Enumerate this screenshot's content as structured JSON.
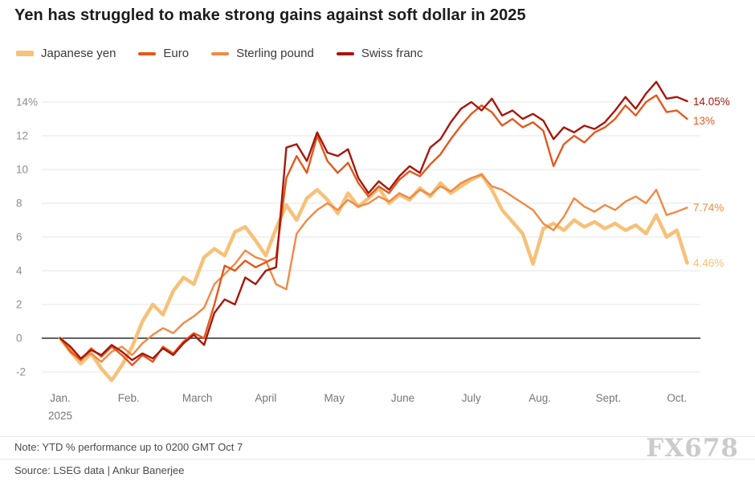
{
  "title": "Yen has struggled to make strong gains against soft dollar in 2025",
  "chart_data": {
    "type": "line",
    "title": "Yen has struggled to make strong gains against soft dollar in 2025",
    "xlabel": "",
    "ylabel": "YTD % performance",
    "grid": "horizontal",
    "legend_position": "top-left",
    "x_axis": {
      "start": 0,
      "step": 0.15,
      "unit": "month (0 = Jan 2025)",
      "ticks": [
        {
          "label": "Jan.",
          "sub": "2025",
          "month": 0
        },
        {
          "label": "Feb.",
          "month": 1
        },
        {
          "label": "March",
          "month": 2
        },
        {
          "label": "April",
          "month": 3
        },
        {
          "label": "May",
          "month": 4
        },
        {
          "label": "June",
          "month": 5
        },
        {
          "label": "July",
          "month": 6
        },
        {
          "label": "Aug.",
          "month": 7
        },
        {
          "label": "Sept.",
          "month": 8
        },
        {
          "label": "Oct.",
          "month": 9
        }
      ]
    },
    "y_axis": {
      "range": [
        -3,
        15.5
      ],
      "ticks": [
        {
          "label": "14%",
          "value": 14
        },
        {
          "label": "12",
          "value": 12
        },
        {
          "label": "10",
          "value": 10
        },
        {
          "label": "8",
          "value": 8
        },
        {
          "label": "6",
          "value": 6
        },
        {
          "label": "4",
          "value": 4
        },
        {
          "label": "2",
          "value": 2
        },
        {
          "label": "0",
          "value": 0
        },
        {
          "label": "-2",
          "value": -2
        }
      ]
    },
    "legend_order": [
      "Japanese yen",
      "Euro",
      "Sterling pound",
      "Swiss franc"
    ],
    "series": [
      {
        "name": "Japanese yen",
        "color": "#F6C178",
        "width": 4.5,
        "values": [
          0,
          -0.8,
          -1.5,
          -0.9,
          -1.8,
          -2.5,
          -1.6,
          -0.5,
          1.0,
          2.0,
          1.4,
          2.8,
          3.6,
          3.2,
          4.8,
          5.3,
          4.9,
          6.3,
          6.6,
          5.8,
          4.9,
          6.5,
          7.9,
          7.0,
          8.3,
          8.8,
          8.2,
          7.4,
          8.6,
          7.8,
          8.3,
          8.9,
          8.0,
          8.5,
          8.2,
          8.9,
          8.4,
          9.2,
          8.6,
          9.0,
          9.4,
          9.7,
          8.8,
          7.6,
          6.9,
          6.2,
          4.4,
          6.5,
          6.8,
          6.4,
          7.0,
          6.6,
          6.9,
          6.5,
          6.8,
          6.4,
          6.7,
          6.2,
          7.3,
          6.0,
          6.4,
          4.46
        ]
      },
      {
        "name": "Sterling pound",
        "color": "#EF8A45",
        "width": 2.4,
        "values": [
          0,
          -0.6,
          -1.2,
          -0.9,
          -1.4,
          -0.8,
          -0.5,
          -1.0,
          -0.3,
          0.2,
          0.6,
          0.3,
          0.9,
          1.3,
          1.8,
          3.2,
          3.8,
          4.4,
          5.2,
          4.8,
          4.6,
          3.2,
          2.9,
          6.2,
          7.0,
          7.6,
          8.0,
          7.6,
          8.2,
          7.8,
          8.0,
          8.4,
          8.1,
          8.6,
          8.3,
          8.8,
          8.5,
          9.0,
          8.7,
          9.2,
          9.5,
          9.7,
          9.0,
          8.8,
          8.4,
          8.0,
          7.6,
          6.8,
          6.4,
          7.2,
          8.3,
          7.8,
          7.5,
          7.9,
          7.6,
          8.1,
          8.4,
          8.0,
          8.8,
          7.3,
          7.5,
          7.74
        ]
      },
      {
        "name": "Euro",
        "color": "#E2581D",
        "width": 2.4,
        "values": [
          0,
          -0.8,
          -1.3,
          -0.6,
          -1.1,
          -0.5,
          -1.0,
          -1.6,
          -1.0,
          -1.4,
          -0.5,
          -0.9,
          -0.2,
          0.3,
          0.0,
          2.0,
          4.3,
          4.0,
          4.6,
          4.2,
          4.5,
          4.8,
          9.5,
          10.8,
          9.8,
          12.0,
          10.5,
          9.8,
          10.4,
          9.2,
          8.4,
          9.0,
          8.6,
          9.4,
          9.9,
          9.6,
          10.3,
          10.9,
          11.8,
          12.6,
          13.3,
          13.8,
          13.4,
          12.6,
          13.0,
          12.5,
          12.8,
          12.3,
          10.2,
          11.5,
          12.0,
          11.6,
          12.2,
          12.5,
          13.0,
          13.8,
          13.2,
          14.0,
          14.4,
          13.4,
          13.5,
          13.0
        ]
      },
      {
        "name": "Swiss franc",
        "color": "#A6170B",
        "width": 2.4,
        "values": [
          0,
          -0.5,
          -1.2,
          -0.7,
          -1.0,
          -0.4,
          -0.8,
          -1.3,
          -0.9,
          -1.2,
          -0.6,
          -1.0,
          -0.3,
          0.2,
          -0.4,
          1.5,
          2.3,
          2.0,
          3.6,
          3.2,
          4.0,
          4.2,
          11.3,
          11.5,
          10.5,
          12.2,
          11.0,
          10.8,
          11.2,
          9.5,
          8.6,
          9.3,
          8.8,
          9.6,
          10.2,
          9.8,
          11.3,
          11.8,
          12.8,
          13.6,
          14.0,
          13.5,
          14.2,
          13.2,
          13.5,
          13.0,
          13.3,
          12.9,
          11.8,
          12.5,
          12.2,
          12.6,
          12.4,
          12.8,
          13.5,
          14.3,
          13.6,
          14.5,
          15.2,
          14.2,
          14.3,
          14.05
        ]
      }
    ],
    "end_labels": [
      {
        "text": "14.05%",
        "series": "Swiss franc",
        "y_value": 14.05
      },
      {
        "text": "13%",
        "series": "Euro",
        "y_value": 12.9
      },
      {
        "text": "7.74%",
        "series": "Sterling pound",
        "y_value": 7.74
      },
      {
        "text": "4.46%",
        "series": "Japanese yen",
        "y_value": 4.46
      }
    ]
  },
  "footer": {
    "note": "Note: YTD % performance up to 0200 GMT Oct 7",
    "source": "Source: LSEG data  | Ankur Banerjee",
    "watermark": "FX678"
  }
}
